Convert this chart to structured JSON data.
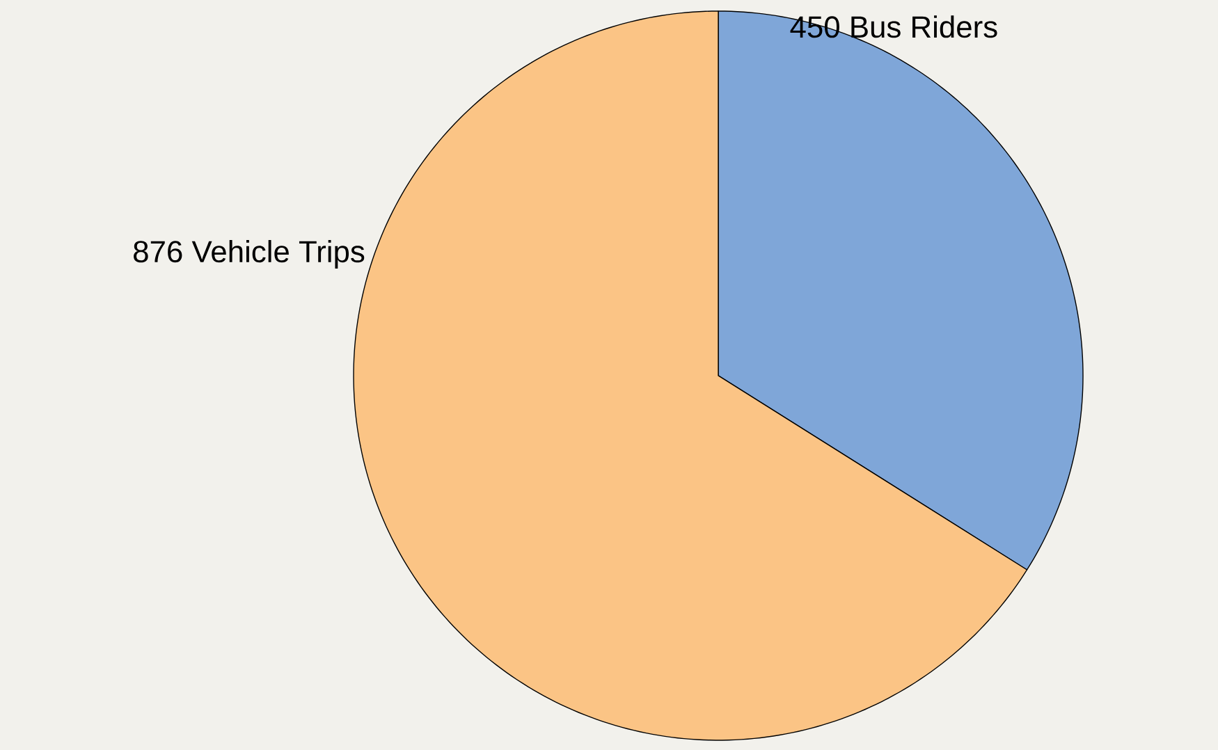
{
  "chart_data": {
    "type": "pie",
    "categories": [
      "Bus Riders",
      "Vehicle Trips"
    ],
    "values": [
      450,
      876
    ],
    "value_labels": [
      "450",
      "876"
    ],
    "colors": [
      "#7fa6d8",
      "#fbc485"
    ]
  }
}
